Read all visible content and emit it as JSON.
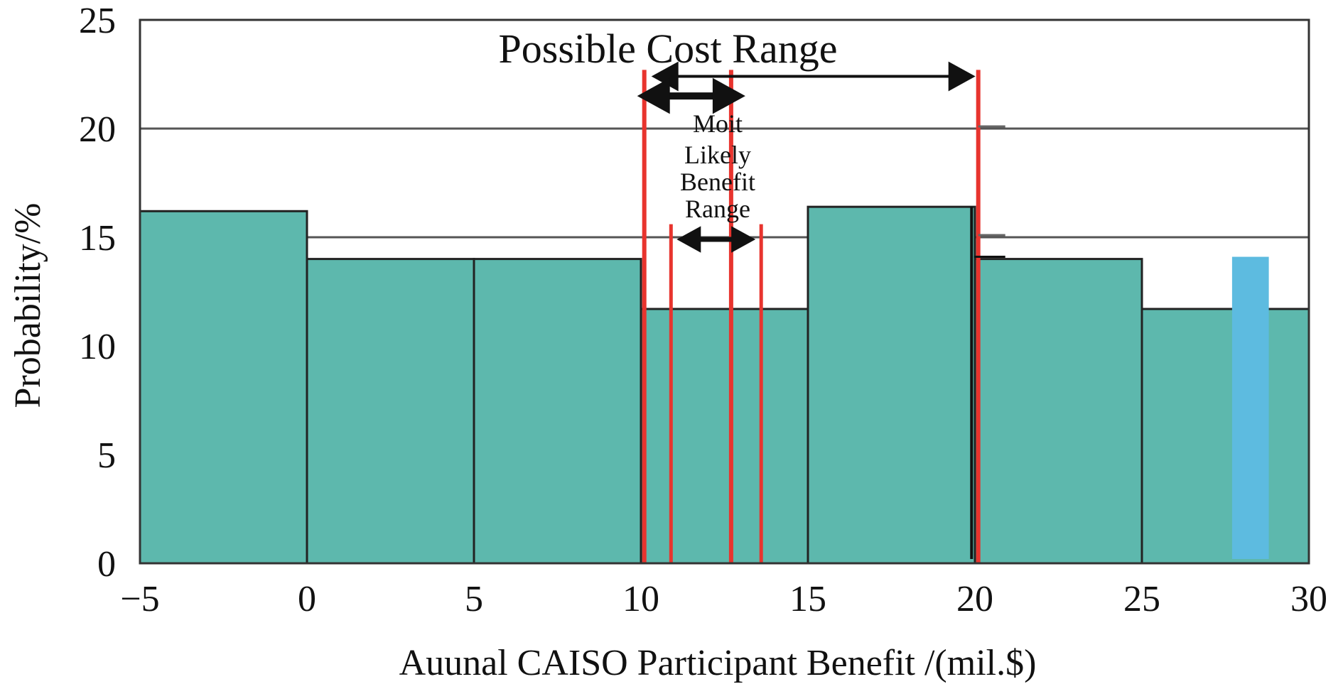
{
  "chart_data": {
    "type": "bar",
    "xlabel": "Auunal CAISO Participant Benefit /(mil.$)",
    "ylabel": "Probability/%",
    "xlim": [
      -5,
      30
    ],
    "ylim": [
      0,
      25
    ],
    "x_ticks": [
      "−5",
      "0",
      "5",
      "10",
      "15",
      "20",
      "25",
      "30"
    ],
    "y_ticks": [
      "0",
      "5",
      "10",
      "15",
      "20",
      "25"
    ],
    "grid": true,
    "colors": {
      "bar": "#5db8ad",
      "bar_edge": "#222222",
      "highlight": "#5dbbe0",
      "range_line": "#e8342e",
      "grid": "#555555"
    },
    "bins": [
      {
        "x0": -5,
        "x1": 0,
        "value": 16.2
      },
      {
        "x0": 0,
        "x1": 5,
        "value": 14.0
      },
      {
        "x0": 5,
        "x1": 10,
        "value": 14.0
      },
      {
        "x0": 10,
        "x1": 15,
        "value": 11.7
      },
      {
        "x0": 15,
        "x1": 20,
        "value": 16.4
      },
      {
        "x0": 20,
        "x1": 25,
        "value": 14.0
      },
      {
        "x0": 25,
        "x1": 30,
        "value": 11.7
      }
    ],
    "highlight_bar": {
      "x0": 27.7,
      "x1": 28.8,
      "value": 14.1
    },
    "annotations": {
      "cost_range": {
        "label": "Possible Cost Range",
        "from": 10.1,
        "mid": 12.7,
        "to": 20.1
      },
      "benefit_range": {
        "lines": [
          "Moit",
          "Likely",
          "Benefit",
          "Range"
        ],
        "from": 10.9,
        "to": 13.6
      }
    }
  }
}
